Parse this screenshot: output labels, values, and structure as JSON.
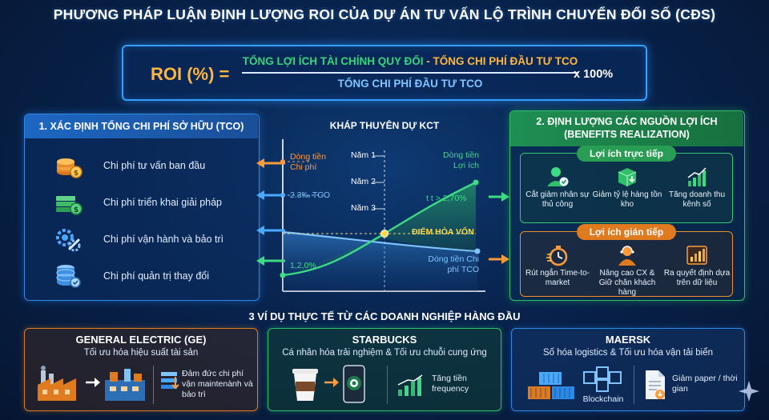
{
  "title": "PHƯƠNG PHÁP LUẬN ĐỊNH LƯỢNG ROI CỦA DỰ ÁN TƯ VẤN LỘ TRÌNH CHUYỂN ĐỔI SỐ (CĐS)",
  "formula": {
    "label": "ROI (%) =",
    "numerator_benefit": "TỔNG LỢI ÍCH TÀI CHÍNH QUY ĐỔI",
    "numerator_minus": " - ",
    "numerator_cost": "TỔNG CHI PHÍ ĐẦU TƯ TCO",
    "denominator": "TỔNG CHI PHÍ ĐẦU TƯ TCO",
    "multiplier": "x 100%"
  },
  "tco_panel": {
    "heading": "1. XÁC ĐỊNH TỔNG CHI PHÍ SỞ HỮU (TCO)",
    "items": [
      {
        "label": "Chi phí tư vấn ban đầu",
        "icon": "coin-stack-icon"
      },
      {
        "label": "Chi phí triển khai giải pháp",
        "icon": "cash-stack-icon"
      },
      {
        "label": "Chi phí vận hành và bảo trì",
        "icon": "gear-wrench-icon"
      },
      {
        "label": "Chi phí quản trị thay đổi",
        "icon": "database-icon"
      }
    ]
  },
  "chart": {
    "title": "KHÁP THUYÊN DỰ KCT",
    "years": [
      "Năm 1",
      "Năm 2",
      "Năm 3"
    ],
    "cost_cashflow_label": "Dòng tiền Chi phí",
    "benefit_cashflow_label": "Dòng tiền Lợi ích",
    "tco_label": "2.3‰ TCO",
    "rate_label": "t t > 2,70%",
    "break_even_label": "ĐIỂM HÒA VỐN",
    "start_label": "1,2,0%",
    "cost_line_label": "Dòng tiền Chi phí TCO"
  },
  "benefits_panel": {
    "heading_line1": "2. ĐỊNH LƯỢNG CÁC NGUỒN LỢI ÍCH",
    "heading_line2": "(BENEFITS REALIZATION)",
    "direct": {
      "title": "Lợi ích trực tiếp",
      "items": [
        {
          "label": "Cắt giảm nhân sự thủ công",
          "icon": "person-check-icon"
        },
        {
          "label": "Giảm tỷ lệ hàng tồn kho",
          "icon": "box-down-icon"
        },
        {
          "label": "Tăng doanh thu kênh số",
          "icon": "bar-growth-icon"
        }
      ]
    },
    "indirect": {
      "title": "Lợi ích gián tiếp",
      "items": [
        {
          "label": "Rút ngắn Time-to-market",
          "icon": "stopwatch-icon"
        },
        {
          "label": "Nâng cao CX & Giữ chân khách hàng",
          "icon": "customer-icon"
        },
        {
          "label": "Ra quyết định dựa trên dữ liệu",
          "icon": "chart-decision-icon"
        }
      ]
    }
  },
  "examples_title": "3 VÍ DỤ THỰC TẾ TỪ CÁC DOANH NGHIỆP HÀNG ĐẦU",
  "cases": {
    "ge": {
      "name": "GENERAL ELECTRIC (GE)",
      "desc": "Tối ưu hóa hiệu suất tài sản",
      "note": "Đảm đức chi phí vận maintenành và bảo trì"
    },
    "starbucks": {
      "name": "STARBUCKS",
      "desc": "Cá nhân hóa trải nghiệm & Tối ưu chuỗi cung ứng",
      "note": "Tăng tiền frequency"
    },
    "maersk": {
      "name": "MAERSK",
      "desc": "Số hóa logistics & Tối ưu hóa vận tải biển",
      "blockchain": "Blockchain",
      "note": "Giảm paper / thời gian"
    }
  },
  "colors": {
    "accent_blue": "#2c8ae6",
    "accent_green": "#2fbf6a",
    "accent_orange": "#e07a1f",
    "highlight_yellow": "#ffd84a"
  }
}
